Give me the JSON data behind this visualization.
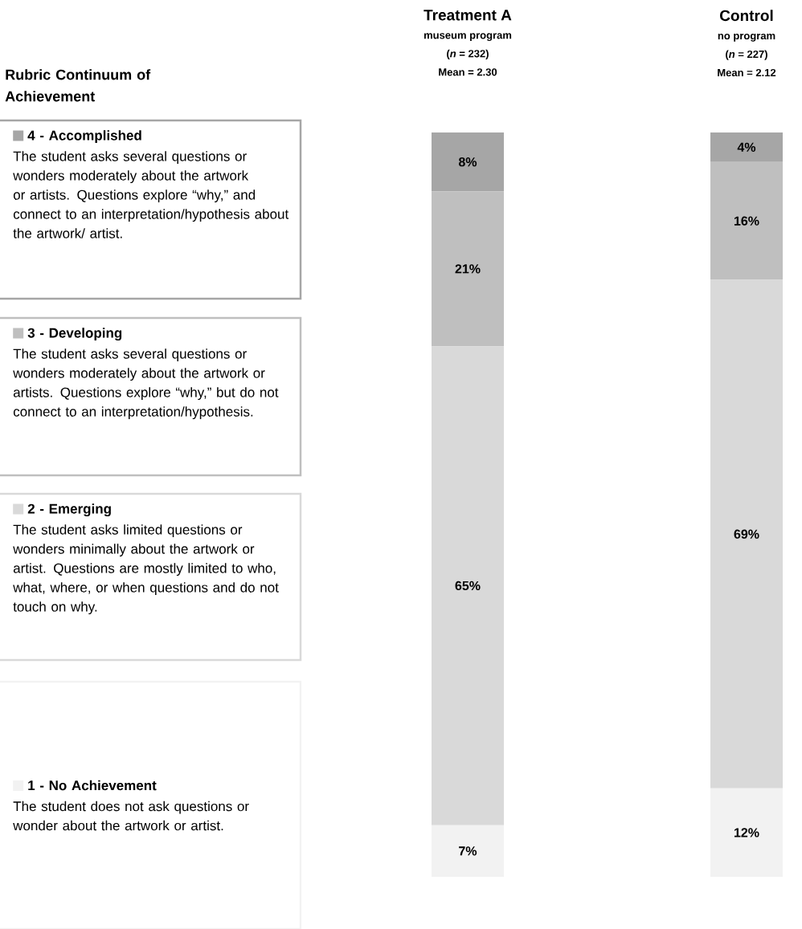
{
  "chart_data": {
    "type": "bar",
    "stacked": true,
    "legend": "left",
    "title": "Rubric Continuum of Achievement",
    "categories": [
      "Treatment A",
      "Control"
    ],
    "series": [
      {
        "name": "1 - No Achievement",
        "color": "#f2f2f2",
        "values": [
          7,
          12
        ],
        "value_labels": [
          "7%",
          "12%"
        ]
      },
      {
        "name": "2 - Emerging",
        "color": "#d9d9d9",
        "values": [
          65,
          69
        ],
        "value_labels": [
          "65%",
          "69%"
        ]
      },
      {
        "name": "3 - Developing",
        "color": "#bfbfbf",
        "values": [
          21,
          16
        ],
        "value_labels": [
          "21%",
          "16%"
        ]
      },
      {
        "name": "4 - Accomplished",
        "color": "#a6a6a6",
        "values": [
          8,
          4
        ],
        "value_labels": [
          "8%",
          "4%"
        ]
      }
    ],
    "annotations": [
      "museum program",
      "(*n* = 232)",
      "Mean = 2.30",
      "no program",
      "(*n* = 227)",
      "Mean = 2.12",
      "The student does not ask questions or wonder about the artwork or artist.",
      "The student asks limited questions or wonders minimally about the artwork or artist.  Questions are mostly limited to who, what, where, or when questions and do not touch on why.",
      "The student asks several questions or wonders moderately about the artwork or artists.  Questions explore “why,” but do not connect to an interpretation/hypothesis.",
      "The student asks several questions or wonders moderately about the artwork or artists.  Questions explore “why,” and connect to an interpretation/hypothesis about the artwork/ artist."
    ]
  }
}
